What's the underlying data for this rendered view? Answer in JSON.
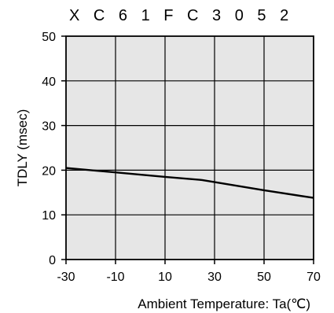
{
  "chart_data": {
    "type": "line",
    "title": "X C 6 1 F C 3 0 5 2",
    "xlabel": "Ambient Temperature: Ta(℃)",
    "ylabel": "TDLY (msec)",
    "xlim": [
      -30,
      70
    ],
    "ylim": [
      0,
      50
    ],
    "x_ticks": [
      "-30",
      "-10",
      "10",
      "30",
      "50",
      "70"
    ],
    "y_ticks": [
      "0",
      "10",
      "20",
      "30",
      "40",
      "50"
    ],
    "grid": true,
    "plot_background": "#e6e6e6",
    "line_color": "#000000",
    "series": [
      {
        "x": [
          -30,
          -10,
          10,
          25,
          50,
          70
        ],
        "y": [
          20.5,
          19.5,
          18.5,
          17.8,
          15.5,
          13.8
        ]
      }
    ]
  }
}
